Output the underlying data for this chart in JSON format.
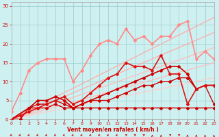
{
  "bg_color": "#cff0f0",
  "grid_color": "#99cccc",
  "xlabel": "Vent moyen/en rafales ( km/h )",
  "xlabel_color": "#cc0000",
  "tick_color": "#cc0000",
  "xlim": [
    0,
    23
  ],
  "ylim": [
    0,
    31
  ],
  "yticks": [
    0,
    5,
    10,
    15,
    20,
    25,
    30
  ],
  "xticks": [
    0,
    1,
    2,
    3,
    4,
    5,
    6,
    7,
    8,
    9,
    10,
    11,
    12,
    13,
    14,
    15,
    16,
    17,
    18,
    19,
    20,
    21,
    22,
    23
  ],
  "lines": [
    {
      "x": [
        0,
        1,
        2,
        3,
        4,
        5,
        6,
        7,
        8,
        9,
        10,
        11,
        12,
        13,
        14,
        15,
        16,
        17,
        18,
        19,
        20,
        21,
        22,
        23
      ],
      "y": [
        0,
        0,
        3,
        3,
        3,
        4,
        3,
        3,
        3,
        3,
        3,
        3,
        3,
        3,
        3,
        3,
        3,
        3,
        3,
        3,
        3,
        3,
        3,
        3
      ],
      "color": "#cc0000",
      "lw": 1.0,
      "marker": "D",
      "ms": 2.0,
      "zorder": 4
    },
    {
      "x": [
        0,
        2,
        3,
        4,
        5,
        6,
        7,
        8,
        9,
        10,
        11,
        12,
        13,
        14,
        15,
        16,
        17,
        18,
        19,
        20,
        21,
        22,
        23
      ],
      "y": [
        0,
        3,
        4,
        4,
        5,
        4,
        3,
        4,
        5,
        5,
        5,
        6,
        7,
        8,
        9,
        9,
        10,
        10,
        11,
        11,
        8,
        9,
        4
      ],
      "color": "#cc0000",
      "lw": 1.0,
      "marker": "D",
      "ms": 2.0,
      "zorder": 4
    },
    {
      "x": [
        0,
        2,
        3,
        4,
        5,
        6,
        7,
        8,
        9,
        10,
        11,
        12,
        13,
        14,
        15,
        16,
        17,
        18,
        19,
        20,
        21,
        22,
        23
      ],
      "y": [
        0,
        3,
        5,
        5,
        6,
        5,
        3,
        4,
        5,
        6,
        7,
        8,
        9,
        10,
        11,
        12,
        13,
        14,
        14,
        12,
        8,
        9,
        9
      ],
      "color": "#cc0000",
      "lw": 1.2,
      "marker": "D",
      "ms": 2.0,
      "zorder": 4
    },
    {
      "x": [
        0,
        1,
        2,
        3,
        4,
        5,
        6,
        7,
        8,
        9,
        10,
        11,
        12,
        13,
        14,
        15,
        16,
        17,
        18,
        19,
        20,
        21,
        22,
        23
      ],
      "y": [
        0,
        1,
        2,
        3,
        4,
        5,
        6,
        4,
        5,
        7,
        9,
        11,
        12,
        15,
        14,
        14,
        13,
        17,
        12,
        12,
        4,
        8,
        9,
        9
      ],
      "color": "#dd1111",
      "lw": 1.2,
      "marker": "D",
      "ms": 2.0,
      "zorder": 4
    },
    {
      "x": [
        0,
        1,
        2,
        3,
        4,
        5,
        6,
        7,
        8,
        9,
        10,
        11,
        12,
        13,
        14,
        15,
        16,
        17,
        18,
        19,
        20,
        21,
        22,
        23
      ],
      "y": [
        2,
        7,
        13,
        15,
        16,
        16,
        16,
        10,
        13,
        17,
        20,
        21,
        20,
        24,
        21,
        22,
        20,
        22,
        22,
        25,
        26,
        16,
        18,
        16
      ],
      "color": "#ff8888",
      "lw": 1.2,
      "marker": "D",
      "ms": 2.0,
      "zorder": 3
    },
    {
      "x": [
        0,
        23
      ],
      "y": [
        0,
        27
      ],
      "color": "#ffaaaa",
      "lw": 0.9,
      "marker": null,
      "ms": 0,
      "zorder": 2
    },
    {
      "x": [
        0,
        23
      ],
      "y": [
        0,
        23
      ],
      "color": "#ffaaaa",
      "lw": 0.9,
      "marker": null,
      "ms": 0,
      "zorder": 2
    },
    {
      "x": [
        0,
        23
      ],
      "y": [
        0,
        19
      ],
      "color": "#ffbbbb",
      "lw": 0.9,
      "marker": null,
      "ms": 0,
      "zorder": 2
    },
    {
      "x": [
        0,
        23
      ],
      "y": [
        0,
        15
      ],
      "color": "#ffbbbb",
      "lw": 0.9,
      "marker": null,
      "ms": 0,
      "zorder": 2
    },
    {
      "x": [
        0,
        23
      ],
      "y": [
        0,
        11
      ],
      "color": "#ffcccc",
      "lw": 0.9,
      "marker": null,
      "ms": 0,
      "zorder": 2
    }
  ],
  "arrow_angles": [
    225,
    225,
    225,
    225,
    225,
    225,
    225,
    225,
    225,
    225,
    225,
    225,
    225,
    45,
    45,
    45,
    90,
    90,
    45,
    45,
    90,
    90,
    90,
    90
  ]
}
